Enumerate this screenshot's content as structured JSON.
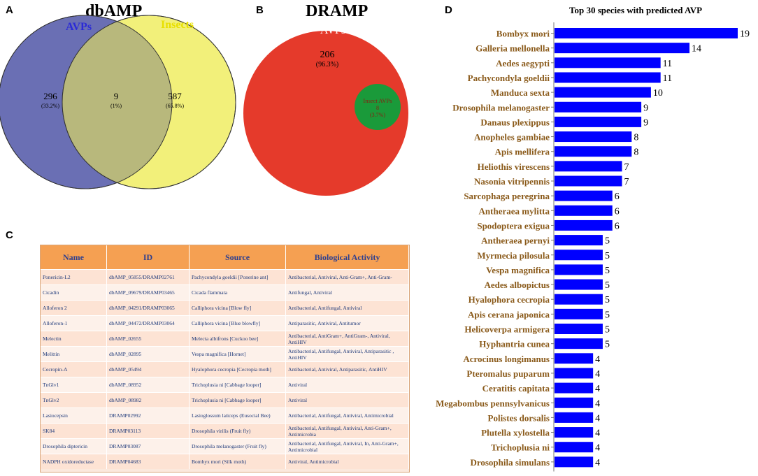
{
  "panels": {
    "a": "A",
    "b": "B",
    "c": "C",
    "d": "D"
  },
  "venn_a": {
    "title": "dbAMP",
    "left_label": "AVPs",
    "right_label": "Insects",
    "left_value": "296",
    "left_pct": "(33.2%)",
    "overlap_value": "9",
    "overlap_pct": "(1%)",
    "right_value": "587",
    "right_pct": "(65.8%)",
    "left_color": "#6a6fb4",
    "right_color": "#f2f07a",
    "overlap_color": "#b8b87c",
    "left_label_color": "#2b2bd6",
    "right_label_color": "#e8e000"
  },
  "venn_b": {
    "title": "DRAMP",
    "outer_label": "AVPs",
    "outer_value": "206",
    "outer_pct": "(96.3%)",
    "inner_label": "Insect AVPs",
    "inner_value": "8",
    "inner_pct": "(3.7%)",
    "outer_color": "#e53a2b",
    "inner_color": "#1a9a3a"
  },
  "table": {
    "headers": [
      "Name",
      "ID",
      "Source",
      "Biological Activity"
    ],
    "rows": [
      {
        "name": "Ponericin-L2",
        "id": "dbAMP_05855/DRAMP02761",
        "source": "Pachycondyla goeldii [Ponerine ant]",
        "activity": "Antibacterial, Antiviral, Anti-Gram+, Anti-Gram-"
      },
      {
        "name": "Cicadin",
        "id": "dbAMP_09679/DRAMP03465",
        "source": "Cicada flammata",
        "activity": "Antifungal, Antiviral"
      },
      {
        "name": "Alloferon 2",
        "id": "dbAMP_04291/DRAMP03065",
        "source": "Calliphora vicina [Blow fly]",
        "activity": "Antibacterial, Antifungal, Antiviral"
      },
      {
        "name": "Alloferon-1",
        "id": "dbAMP_04472/DRAMP03064",
        "source": "Calliphora vicina [Blue blowfly]",
        "activity": "Antiparasitic, Antiviral, Antitumor"
      },
      {
        "name": "Melectin",
        "id": "dbAMP_02655",
        "source": "Melecta albifrons [Cuckoo bee]",
        "activity": "Antibacterial, AntiGram+, AntiGram-, Antiviral, AntiHIV"
      },
      {
        "name": "Melittin",
        "id": "dbAMP_02895",
        "source": "Vespa magnifica [Hornet]",
        "activity": "Antibacterial, Antifungal, Antiviral, Antiparasitic , AntiHIV"
      },
      {
        "name": "Cecropin-A",
        "id": "dbAMP_05494",
        "source": "Hyalophora cecropia [Cecropia moth]",
        "activity": "Antibacterial, Antiviral, Antiparasitic, AntiHIV"
      },
      {
        "name": "TnGlv1",
        "id": "dbAMP_08952",
        "source": "Trichoplusia ni [Cabbage looper]",
        "activity": "Antiviral"
      },
      {
        "name": "TnGlv2",
        "id": "dbAMP_08982",
        "source": "Trichoplusia ni [Cabbage looper]",
        "activity": "Antiviral"
      },
      {
        "name": "Lasiocepsin",
        "id": "DRAMP02992",
        "source": "Lasioglossum laticeps (Eusocial Bee)",
        "activity": "Antibacterial, Antifungal, Antiviral, Antimicrobial"
      },
      {
        "name": "SK84",
        "id": "DRAMP03113",
        "source": "Drosophila virilis (Fruit fly)",
        "activity": "Antibacterial, Antifungal, Antiviral, Anti-Gram+, Antimicrobia"
      },
      {
        "name": "Drosophila diptericin",
        "id": "DRAMP03087",
        "source": "Drosophila melanogaster (Fruit fly)",
        "activity": "Antibacterial, Antifungal, Antiviral, In, Anti-Gram+, Antimicrobial"
      },
      {
        "name": "NADPH oxidoreductase",
        "id": "DRAMP04683",
        "source": "Bombyx mori (Silk moth)",
        "activity": "Antiviral, Antimicrobial"
      }
    ]
  },
  "chart_data": {
    "type": "bar",
    "orientation": "horizontal",
    "title": "Top 30 species with  predicted AVP",
    "bar_color": "#0000ff",
    "label_color": "#8a5a1a",
    "categories": [
      "Bombyx mori",
      "Galleria mellonella",
      "Aedes aegypti",
      "Pachycondyla goeldii",
      "Manduca sexta",
      "Drosophila melanogaster",
      "Danaus plexippus",
      "Anopheles gambiae",
      "Apis mellifera",
      "Heliothis virescens",
      "Nasonia vitripennis",
      "Sarcophaga peregrina",
      "Antheraea mylitta",
      "Spodoptera exigua",
      "Antheraea pernyi",
      "Myrmecia pilosula",
      "Vespa magnifica",
      "Aedes albopictus",
      "Hyalophora cecropia",
      "Apis cerana japonica",
      "Helicoverpa armigera",
      "Hyphantria cunea",
      "Acrocinus longimanus",
      "Pteromalus puparum",
      "Ceratitis capitata",
      "Megabombus pennsylvanicus",
      "Polistes dorsalis",
      "Plutella xylostella",
      "Trichoplusia ni",
      "Drosophila simulans"
    ],
    "values": [
      19,
      14,
      11,
      11,
      10,
      9,
      9,
      8,
      8,
      7,
      7,
      6,
      6,
      6,
      5,
      5,
      5,
      5,
      5,
      5,
      5,
      5,
      4,
      4,
      4,
      4,
      4,
      4,
      4,
      4
    ],
    "xlim": [
      0,
      19
    ]
  }
}
